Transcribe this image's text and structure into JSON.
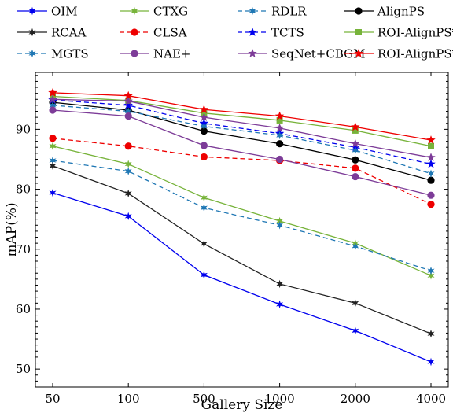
{
  "chart_data": {
    "type": "line",
    "title": "",
    "xlabel": "Gallery Size",
    "ylabel": "mAP(%)",
    "categories": [
      "50",
      "100",
      "500",
      "1000",
      "2000",
      "4000"
    ],
    "ylim": [
      47,
      99.5
    ],
    "yticks": [
      50,
      60,
      70,
      80,
      90
    ],
    "grid": false,
    "legend_position": "top",
    "series": [
      {
        "name": "OIM",
        "color": "#0000ee",
        "dash": "solid",
        "marker": "star6",
        "values": [
          79.4,
          75.5,
          65.7,
          60.8,
          56.4,
          51.2
        ]
      },
      {
        "name": "CTXG",
        "color": "#77b33a",
        "dash": "solid",
        "marker": "star6",
        "values": [
          87.2,
          84.2,
          78.6,
          74.7,
          71.0,
          65.6
        ]
      },
      {
        "name": "RDLR",
        "color": "#1f77b4",
        "dash": "dashed",
        "marker": "star6",
        "values": [
          84.8,
          83.0,
          76.9,
          74.0,
          70.5,
          66.4
        ]
      },
      {
        "name": "AlignPS",
        "color": "#000000",
        "dash": "solid",
        "marker": "circle",
        "values": [
          94.5,
          93.2,
          89.7,
          87.6,
          84.9,
          81.5
        ]
      },
      {
        "name": "RCAA",
        "color": "#222222",
        "dash": "solid",
        "marker": "star6",
        "values": [
          83.9,
          79.3,
          70.9,
          64.2,
          61.0,
          55.9
        ]
      },
      {
        "name": "CLSA",
        "color": "#ee0000",
        "dash": "dashed",
        "marker": "circle",
        "values": [
          88.5,
          87.2,
          85.4,
          84.8,
          83.5,
          77.5
        ]
      },
      {
        "name": "TCTS",
        "color": "#0000ee",
        "dash": "dashed",
        "marker": "star5",
        "values": [
          94.9,
          94.0,
          91.0,
          89.3,
          87.0,
          84.2
        ]
      },
      {
        "name": "ROI-AlignPS*",
        "color": "#77b33a",
        "dash": "solid",
        "marker": "square",
        "values": [
          95.5,
          94.8,
          92.7,
          91.5,
          89.8,
          87.2
        ]
      },
      {
        "name": "MGTS",
        "color": "#1f77b4",
        "dash": "dashed",
        "marker": "star6",
        "values": [
          94.0,
          93.0,
          90.5,
          89.0,
          86.5,
          82.6
        ]
      },
      {
        "name": "NAE+",
        "color": "#7d3c98",
        "dash": "solid",
        "marker": "circle",
        "values": [
          93.2,
          92.2,
          87.3,
          85.0,
          82.1,
          79.0
        ]
      },
      {
        "name": "SeqNet+CBGM",
        "color": "#7d3c98",
        "dash": "solid",
        "marker": "star5",
        "values": [
          95.0,
          94.7,
          92.0,
          90.2,
          87.6,
          85.3
        ]
      },
      {
        "name": "ROI-AlignPS*+GALW",
        "color": "#ee0000",
        "dash": "solid",
        "marker": "star5",
        "values": [
          96.1,
          95.6,
          93.3,
          92.2,
          90.4,
          88.2
        ]
      }
    ]
  }
}
